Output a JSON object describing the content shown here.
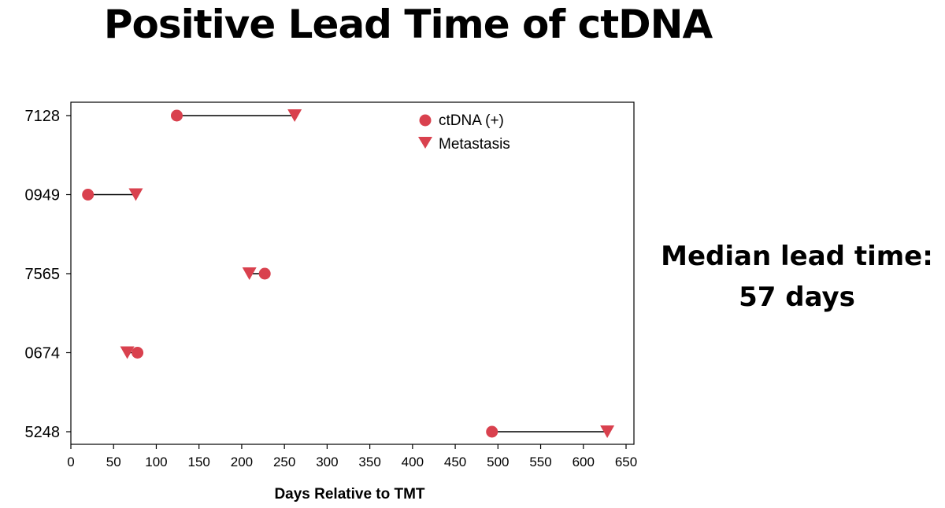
{
  "slide": {
    "title": "Positive Lead Time of ctDNA",
    "note_line1": "Median lead time:",
    "note_line2": "57 days"
  },
  "chart_data": {
    "type": "scatter",
    "title": "",
    "xlabel": "Days Relative to TMT",
    "ylabel": "",
    "xlim": [
      0,
      650
    ],
    "xticks": [
      0,
      50,
      100,
      150,
      200,
      250,
      300,
      350,
      400,
      450,
      500,
      550,
      600,
      650
    ],
    "categories": [
      "7128",
      "0949",
      "7565",
      "0674",
      "5248"
    ],
    "series": [
      {
        "name": "ctDNA (+)",
        "marker": "circle",
        "color": "#d9414e",
        "values": [
          124,
          20,
          227,
          78,
          493
        ]
      },
      {
        "name": "Metastasis",
        "marker": "triangle-down",
        "color": "#d9414e",
        "values": [
          262,
          76,
          209,
          66,
          628
        ]
      }
    ],
    "connector_color": "#000000",
    "grid": false,
    "legend_position": "top-right"
  }
}
